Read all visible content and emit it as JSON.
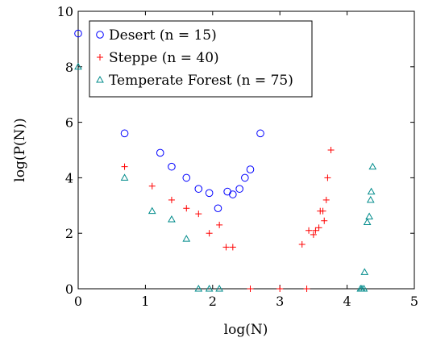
{
  "chart_data": {
    "type": "scatter",
    "xlabel": "log(N)",
    "ylabel": "log(P(N))",
    "xlim": [
      0,
      5
    ],
    "ylim": [
      0,
      10
    ],
    "x_ticks": [
      "0",
      "1",
      "2",
      "3",
      "4",
      "5"
    ],
    "y_ticks": [
      "0",
      "2",
      "4",
      "6",
      "8",
      "10"
    ],
    "grid": false,
    "legend_position": "top-left",
    "series": [
      {
        "name": "Desert (n = 15)",
        "marker": "circle",
        "color": "#0000ff",
        "points": [
          [
            0.0,
            9.2
          ],
          [
            0.69,
            5.6
          ],
          [
            1.22,
            4.9
          ],
          [
            1.39,
            4.4
          ],
          [
            1.61,
            4.0
          ],
          [
            1.79,
            3.6
          ],
          [
            1.95,
            3.45
          ],
          [
            2.08,
            2.9
          ],
          [
            2.22,
            3.5
          ],
          [
            2.3,
            3.4
          ],
          [
            2.4,
            3.6
          ],
          [
            2.48,
            4.0
          ],
          [
            2.56,
            4.3
          ],
          [
            2.71,
            5.6
          ]
        ]
      },
      {
        "name": "Steppe (n = 40)",
        "marker": "plus",
        "color": "#ff0000",
        "points": [
          [
            0.69,
            4.4
          ],
          [
            1.1,
            3.7
          ],
          [
            1.39,
            3.2
          ],
          [
            1.61,
            2.9
          ],
          [
            1.79,
            2.7
          ],
          [
            1.95,
            2.0
          ],
          [
            2.1,
            2.3
          ],
          [
            2.2,
            1.5
          ],
          [
            2.3,
            1.5
          ],
          [
            2.56,
            0.0
          ],
          [
            3.0,
            0.0
          ],
          [
            3.33,
            1.6
          ],
          [
            3.4,
            0.0
          ],
          [
            3.43,
            2.1
          ],
          [
            3.5,
            1.95
          ],
          [
            3.53,
            2.1
          ],
          [
            3.58,
            2.2
          ],
          [
            3.6,
            2.8
          ],
          [
            3.64,
            2.8
          ],
          [
            3.66,
            2.45
          ],
          [
            3.69,
            3.2
          ],
          [
            3.71,
            4.0
          ],
          [
            3.76,
            5.0
          ]
        ]
      },
      {
        "name": "Temperate Forest (n = 75)",
        "marker": "triangle",
        "color": "#008b8b",
        "points": [
          [
            0.0,
            8.0
          ],
          [
            0.69,
            4.0
          ],
          [
            1.1,
            2.8
          ],
          [
            1.39,
            2.5
          ],
          [
            1.61,
            1.8
          ],
          [
            1.79,
            0.0
          ],
          [
            1.95,
            0.0
          ],
          [
            2.1,
            0.0
          ],
          [
            4.2,
            0.0
          ],
          [
            4.22,
            0.0
          ],
          [
            4.25,
            0.0
          ],
          [
            4.26,
            0.6
          ],
          [
            4.3,
            2.4
          ],
          [
            4.33,
            2.6
          ],
          [
            4.35,
            3.2
          ],
          [
            4.36,
            3.5
          ],
          [
            4.38,
            4.4
          ]
        ]
      }
    ]
  }
}
